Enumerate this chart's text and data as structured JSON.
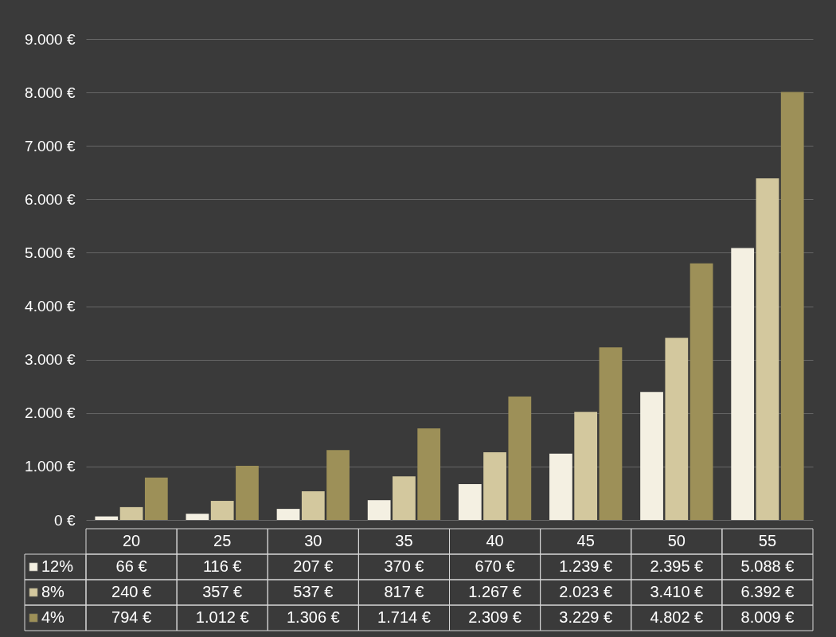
{
  "chart_data": {
    "type": "bar",
    "categories": [
      "20",
      "25",
      "30",
      "35",
      "40",
      "45",
      "50",
      "55"
    ],
    "series": [
      {
        "name": "12%",
        "color": "#f4f0e2",
        "values": [
          66,
          116,
          207,
          370,
          670,
          1239,
          2395,
          5088
        ],
        "value_labels": [
          "66 €",
          "116 €",
          "207 €",
          "370 €",
          "670 €",
          "1.239 €",
          "2.395 €",
          "5.088 €"
        ]
      },
      {
        "name": "8%",
        "color": "#d3c89e",
        "values": [
          240,
          357,
          537,
          817,
          1267,
          2023,
          3410,
          6392
        ],
        "value_labels": [
          "240 €",
          "357 €",
          "537 €",
          "817 €",
          "1.267 €",
          "2.023 €",
          "3.410 €",
          "6.392 €"
        ]
      },
      {
        "name": "4%",
        "color": "#9d9058",
        "values": [
          794,
          1012,
          1306,
          1714,
          2309,
          3229,
          4802,
          8009
        ],
        "value_labels": [
          "794 €",
          "1.012 €",
          "1.306 €",
          "1.714 €",
          "2.309 €",
          "3.229 €",
          "4.802 €",
          "8.009 €"
        ]
      }
    ],
    "ylim": [
      0,
      9000
    ],
    "yticks": [
      {
        "value": 0,
        "label": "0 €"
      },
      {
        "value": 1000,
        "label": "1.000 €"
      },
      {
        "value": 2000,
        "label": "2.000 €"
      },
      {
        "value": 3000,
        "label": "3.000 €"
      },
      {
        "value": 4000,
        "label": "4.000 €"
      },
      {
        "value": 5000,
        "label": "5.000 €"
      },
      {
        "value": 6000,
        "label": "6.000 €"
      },
      {
        "value": 7000,
        "label": "7.000 €"
      },
      {
        "value": 8000,
        "label": "8.000 €"
      },
      {
        "value": 9000,
        "label": "9.000 €"
      }
    ],
    "grid": true,
    "legend": "bottom left"
  }
}
